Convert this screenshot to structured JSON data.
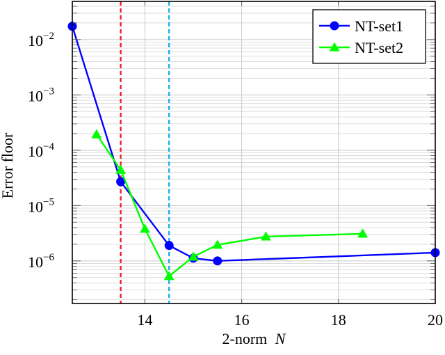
{
  "chart_data": {
    "type": "line",
    "title": "",
    "xlabel": "2-norm",
    "xlabel_var": "N",
    "ylabel": "Error floor",
    "xscale": "linear",
    "yscale": "log",
    "xlim": [
      12.5,
      20
    ],
    "ylim": [
      1.7e-07,
      0.049
    ],
    "xticks": [
      14,
      16,
      18,
      20
    ],
    "xtick_labels": [
      "14",
      "16",
      "18",
      "20"
    ],
    "yticks": [
      1e-06,
      1e-05,
      0.0001,
      0.001,
      0.01
    ],
    "ytick_labels": [
      {
        "base": "10",
        "exp": "−6"
      },
      {
        "base": "10",
        "exp": "−5"
      },
      {
        "base": "10",
        "exp": "−4"
      },
      {
        "base": "10",
        "exp": "−3"
      },
      {
        "base": "10",
        "exp": "−2"
      }
    ],
    "grid": {
      "major": true,
      "minor_y": true
    },
    "legend_position": "upper right",
    "series": [
      {
        "name": "NT-set1",
        "color": "#0000ff",
        "marker": "circle",
        "x": [
          12.5,
          13.5,
          14.5,
          15,
          15.5,
          20
        ],
        "y": [
          0.0174,
          2.7e-05,
          1.9e-06,
          1.12e-06,
          1e-06,
          1.41e-06
        ]
      },
      {
        "name": "NT-set2",
        "color": "#00ff00",
        "marker": "triangle",
        "x": [
          13,
          13.5,
          14,
          14.5,
          15,
          15.5,
          16.5,
          18.5
        ],
        "y": [
          0.000194,
          4.4e-05,
          3.8e-06,
          5.3e-07,
          1.19e-06,
          1.95e-06,
          2.75e-06,
          3.1e-06
        ]
      }
    ],
    "vlines": [
      {
        "x": 13.5,
        "color": "#ee1c25",
        "style": "dashed"
      },
      {
        "x": 14.5,
        "color": "#1ab0e8",
        "style": "dashed"
      }
    ]
  }
}
